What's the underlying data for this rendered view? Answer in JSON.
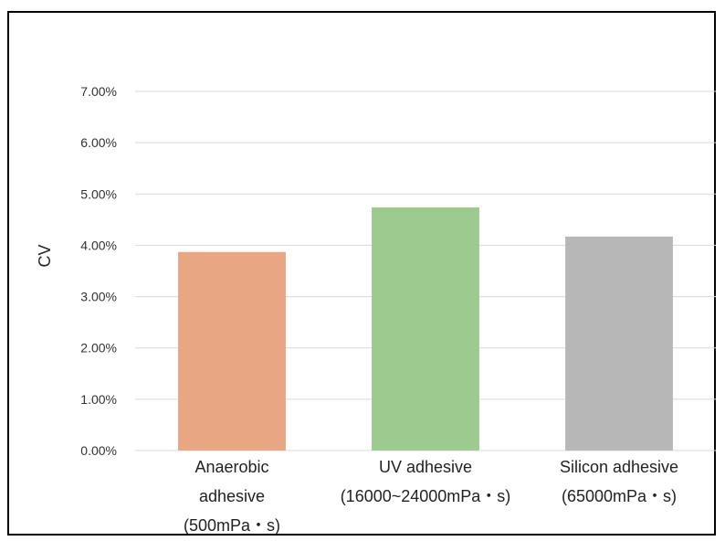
{
  "chart_data": {
    "type": "bar",
    "title": "",
    "xlabel": "",
    "ylabel": "CV",
    "ylim": [
      0,
      0.07
    ],
    "yticks": [
      "0.00%",
      "1.00%",
      "2.00%",
      "3.00%",
      "4.00%",
      "5.00%",
      "6.00%",
      "7.00%"
    ],
    "grid": true,
    "categories": [
      [
        "Anaerobic",
        "adhesive",
        "(500mPa・s)"
      ],
      [
        "UV adhesive",
        "(16000~24000mPa・s)"
      ],
      [
        "Silicon adhesive",
        "(65000mPa・s)"
      ]
    ],
    "values": [
      0.0387,
      0.0474,
      0.0417
    ],
    "colors": [
      "#E9A683",
      "#9DCA8F",
      "#B7B7B7"
    ]
  }
}
